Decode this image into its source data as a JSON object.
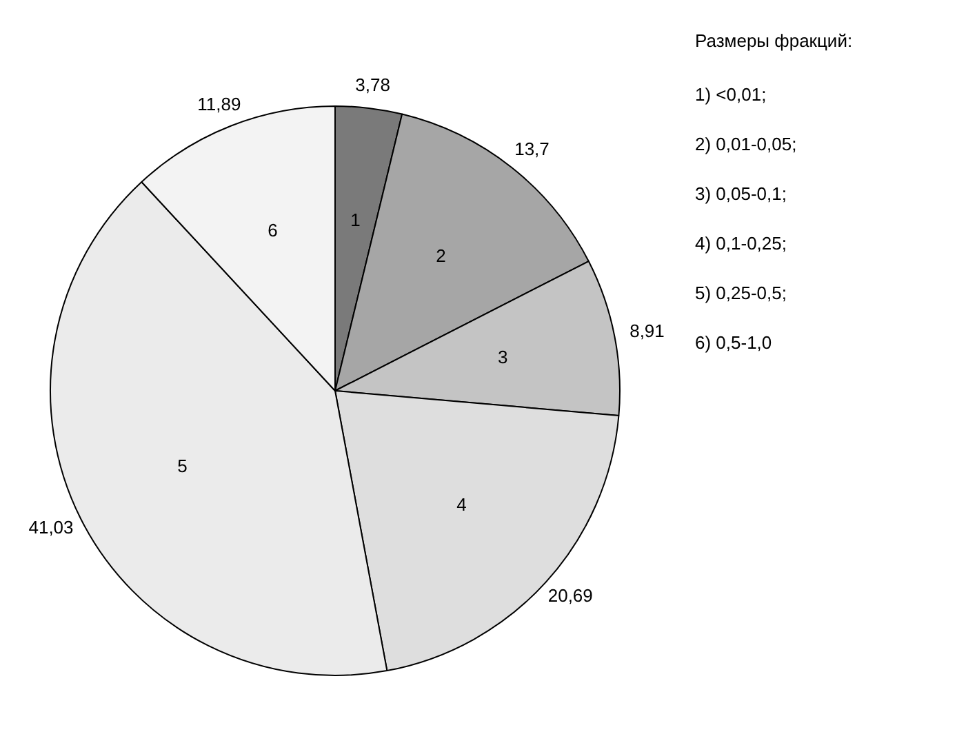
{
  "chart_data": {
    "type": "pie",
    "legend_title": "Размеры фракций:",
    "categories": [
      "1",
      "2",
      "3",
      "4",
      "5",
      "6"
    ],
    "values": [
      3.78,
      13.7,
      8.91,
      20.69,
      41.03,
      11.89
    ],
    "value_labels": [
      "3,78",
      "13,7",
      "8,91",
      "20,69",
      "41,03",
      "11,89"
    ],
    "colors": [
      "#7a7a7a",
      "#a6a6a6",
      "#c4c4c4",
      "#dedede",
      "#ebebeb",
      "#f3f3f3"
    ],
    "annotations": [
      "1) <0,01;",
      "2) 0,01-0,05;",
      "3) 0,05-0,1;",
      "4) 0,1-0,25;",
      "5) 0,25-0,5;",
      "6) 0,5-1,0"
    ]
  }
}
